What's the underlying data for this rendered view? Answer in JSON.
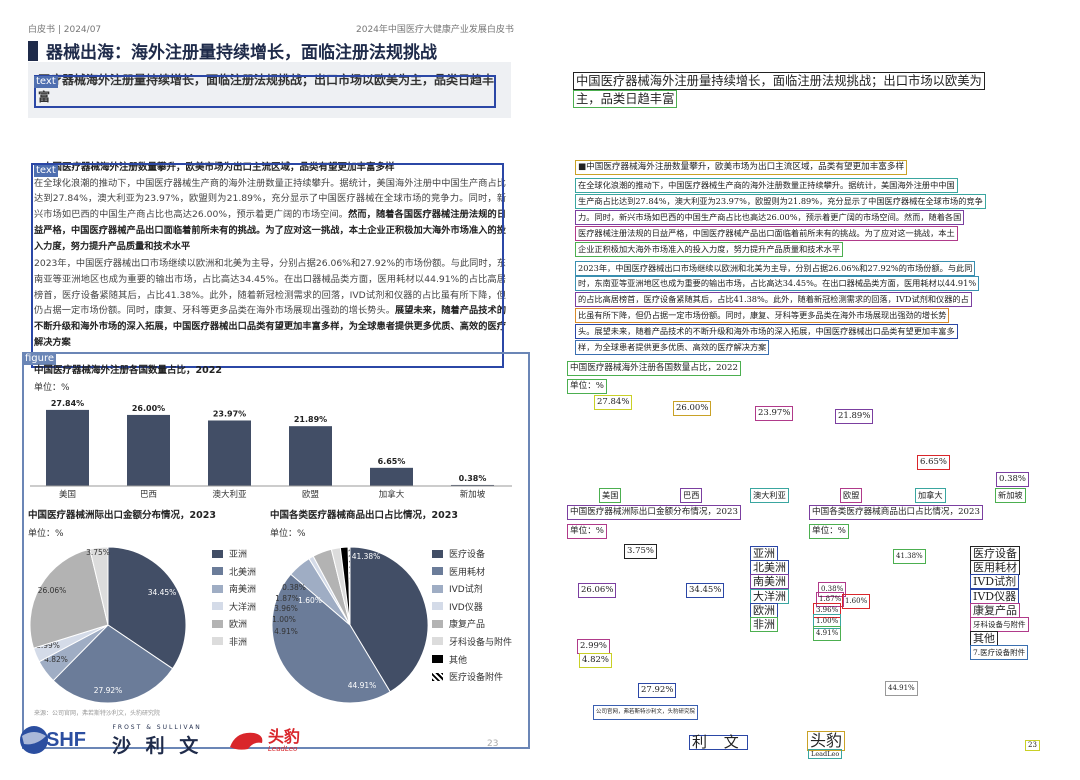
{
  "header": {
    "left": "白皮书 | 2024/07",
    "right": "2024年中国医疗大健康产业发展白皮书"
  },
  "title": "器械出海：海外注册量持续增长，面临注册法规挑战",
  "lead_text": "医疗器械海外注册量持续增长，面临注册法规挑战；出口市场以欧美为主，品类日趋丰富",
  "tags": {
    "text": "text",
    "figure": "figure"
  },
  "section_heading": "■中国医疗器械海外注册数量攀升，欧美市场为出口主流区域，品类有望更加丰富多样",
  "paragraph1": {
    "normal": "在全球化浪潮的推动下，中国医疗器械生产商的海外注册数量正持续攀升。据统计，美国海外注册中中国生产商占比达到27.84%，澳大利亚为23.97%，欧盟则为21.89%，充分显示了中国医疗器械在全球市场的竞争力。同时，新兴市场如巴西的中国生产商占比也高达26.00%，预示着更广阔的市场空间。",
    "bold": "然而，随着各国医疗器械注册法规的日益严格，中国医疗器械产品出口面临着前所未有的挑战。为了应对这一挑战，本土企业正积极加大海外市场准入的投入力度，努力提升产品质量和技术水平"
  },
  "paragraph2": {
    "normal": "2023年，中国医疗器械出口市场继续以欧洲和北美为主导，分别占据26.06%和27.92%的市场份额。与此同时，东南亚等亚洲地区也成为重要的输出市场，占比高达34.45%。在出口器械品类方面，医用耗材以44.91%的占比高居榜首，医疗设备紧随其后，占比41.38%。此外，随着新冠检测需求的回落，IVD试剂和仪器的占比虽有所下降，但仍占据一定市场份额。同时，康复、牙科等更多品类在海外市场展现出强劲的增长势头。",
    "bold": "展望未来，随着产品技术的不断升级和海外市场的深入拓展，中国医疗器械出口品类有望更加丰富多样，为全球患者提供更多优质、高效的医疗解决方案"
  },
  "charts_text": {
    "bar_title": "中国医疗器械海外注册各国数量占比，2022",
    "bar_unit": "单位：%",
    "pie1_title": "中国医疗器械洲际出口金额分布情况，2023",
    "pie1_unit": "单位：%",
    "pie2_title": "中国各类医疗器械商品出口占比情况，2023",
    "pie2_unit": "单位：%"
  },
  "chart_data": [
    {
      "type": "bar",
      "title": "中国医疗器械海外注册各国数量占比，2022",
      "unit": "单位：%",
      "categories": [
        "美国",
        "巴西",
        "澳大利亚",
        "欧盟",
        "加拿大",
        "新加坡"
      ],
      "values": [
        27.84,
        26.0,
        23.97,
        21.89,
        6.65,
        0.38
      ],
      "labels": [
        "27.84%",
        "26.00%",
        "23.97%",
        "21.89%",
        "6.65%",
        "0.38%"
      ],
      "ylim": [
        0,
        30
      ],
      "color": "#424e66"
    },
    {
      "type": "pie",
      "title": "中国医疗器械洲际出口金额分布情况，2023",
      "unit": "单位：%",
      "slices": [
        {
          "name": "亚洲",
          "value": 34.45,
          "label": "34.45%",
          "color": "#424e66"
        },
        {
          "name": "北美洲",
          "value": 27.92,
          "label": "27.92%",
          "color": "#6b7c99"
        },
        {
          "name": "南美洲",
          "value": 4.82,
          "label": "4.82%",
          "color": "#9fadc4"
        },
        {
          "name": "大洋洲",
          "value": 2.99,
          "label": "2.99%",
          "color": "#d4dbe8"
        },
        {
          "name": "欧洲",
          "value": 26.06,
          "label": "26.06%",
          "color": "#b3b3b3"
        },
        {
          "name": "非洲",
          "value": 3.75,
          "label": "3.75%",
          "color": "#dcdcdc"
        }
      ],
      "legend": [
        "亚洲",
        "北美洲",
        "南美洲",
        "大洋洲",
        "欧洲",
        "非洲"
      ]
    },
    {
      "type": "pie",
      "title": "中国各类医疗器械商品出口占比情况，2023",
      "unit": "单位：%",
      "slices": [
        {
          "name": "医疗设备",
          "value": 41.38,
          "label": "41.38%",
          "color": "#424e66"
        },
        {
          "name": "医用耗材",
          "value": 44.91,
          "label": "44.91%",
          "color": "#6b7c99"
        },
        {
          "name": "IVD试剂",
          "value": 4.91,
          "label": "4.91%",
          "color": "#9fadc4"
        },
        {
          "name": "IVD仪器",
          "value": 1.0,
          "label": "1.00%",
          "color": "#d4dbe8"
        },
        {
          "name": "康复产品",
          "value": 3.96,
          "label": "3.96%",
          "color": "#b3b3b3"
        },
        {
          "name": "牙科设备与附件",
          "value": 1.87,
          "label": "1.87%",
          "color": "#dcdcdc"
        },
        {
          "name": "其他",
          "value": 1.6,
          "label": "1.60%",
          "color": "#000000"
        },
        {
          "name": "医疗设备附件",
          "value": 0.38,
          "label": "0.38%",
          "color": "hatch"
        }
      ],
      "legend": [
        "医疗设备",
        "医用耗材",
        "IVD试剂",
        "IVD仪器",
        "康复产品",
        "牙科设备与附件",
        "其他",
        "医疗设备附件"
      ]
    }
  ],
  "source": "来源：公司官网，弗若斯特沙利文，头豹研究院",
  "page_number": "23",
  "logos": {
    "shf": "SHF",
    "frost": "FROST & SULLIVAN",
    "frost_cn": "沙 利 文",
    "leo": "头豹",
    "leo_en": "LeadLeo"
  },
  "ocr_right": {
    "lead_line1": "中国医疗器械海外注册量持续增长，面临注册法规挑战；出口市场以欧美为",
    "lead_line2": "主，品类日趋丰富",
    "heading": "■中国医疗器械海外注册数量攀升，欧美市场为出口主流区域，品类有望更加丰富多样",
    "lines": [
      "在全球化浪潮的推动下，中国医疗器械生产商的海外注册数量正持续攀升。据统计，美国海外注册中中国",
      "生产商占比达到27.84%，澳大利亚为23.97%，欧盟则为21.89%，充分显示了中国医疗器械在全球市场的竞争",
      "力。同时，新兴市场如巴西的中国生产商占比也高达26.00%，预示着更广阔的市场空间。然而，随着各国",
      "医疗器械注册法规的日益严格，中国医疗器械产品出口面临着前所未有的挑战。为了应对这一挑战，本土",
      "企业正积极加大海外市场准入的投入力度，努力提升产品质量和技术水平",
      "2023年，中国医疗器械出口市场继续以欧洲和北美为主导，分别占据26.06%和27.92%的市场份额。与此同",
      "时，东南亚等亚洲地区也成为重要的输出市场，占比高达34.45%。在出口器械品类方面，医用耗材以44.91%",
      "的占比高居榜首，医疗设备紧随其后，占比41.38%。此外，随着新冠检测需求的回落，IVD试剂和仪器的占",
      "比虽有所下降，但仍占据一定市场份额。同时，康复、牙科等更多品类在海外市场展现出强劲的增长势",
      "头。展望未来，随着产品技术的不断升级和海外市场的深入拓展，中国医疗器械出口品类有望更加丰富多",
      "样，为全球患者提供更多优质、高效的医疗解决方案"
    ],
    "bar_title": "中国医疗器械海外注册各国数量占比，2022",
    "unit": "单位：%",
    "bar_vals": [
      "27.84%",
      "26.00%",
      "23.97%",
      "21.89%",
      "6.65%",
      "0.38%"
    ],
    "bar_cats": [
      "美国",
      "巴西",
      "澳大利亚",
      "欧盟",
      "加拿大",
      "新加坡"
    ],
    "pie1_title": "中国医疗器械洲际出口金额分布情况，2023",
    "pie2_title": "中国各类医疗器械商品出口占比情况，2023",
    "pie1_legend": [
      "亚洲",
      "北美洲",
      "南美洲",
      "大洋洲",
      "欧洲",
      "非洲"
    ],
    "pie2_legend": [
      "医疗设备",
      "医用耗材",
      "IVD试剂",
      "IVD仪器",
      "康复产品",
      "牙科设备与附件",
      "其他",
      "7.医疗设备附件"
    ],
    "pie1_vals": [
      "3.75%",
      "26.06%",
      "34.45%",
      "2.99%",
      "4.82%",
      "27.92%"
    ],
    "pie2_vals": [
      "41.38%",
      "0.38%",
      "1.87%",
      "1.60%",
      "3.96%",
      "1.00%",
      "4.91%",
      "44.91%"
    ],
    "source": "公司官网，弗若斯特沙利文，头豹研究院",
    "frost_cn": "利 文",
    "leo": "头豹",
    "leo_en": "LeadLeo",
    "page": "23"
  }
}
